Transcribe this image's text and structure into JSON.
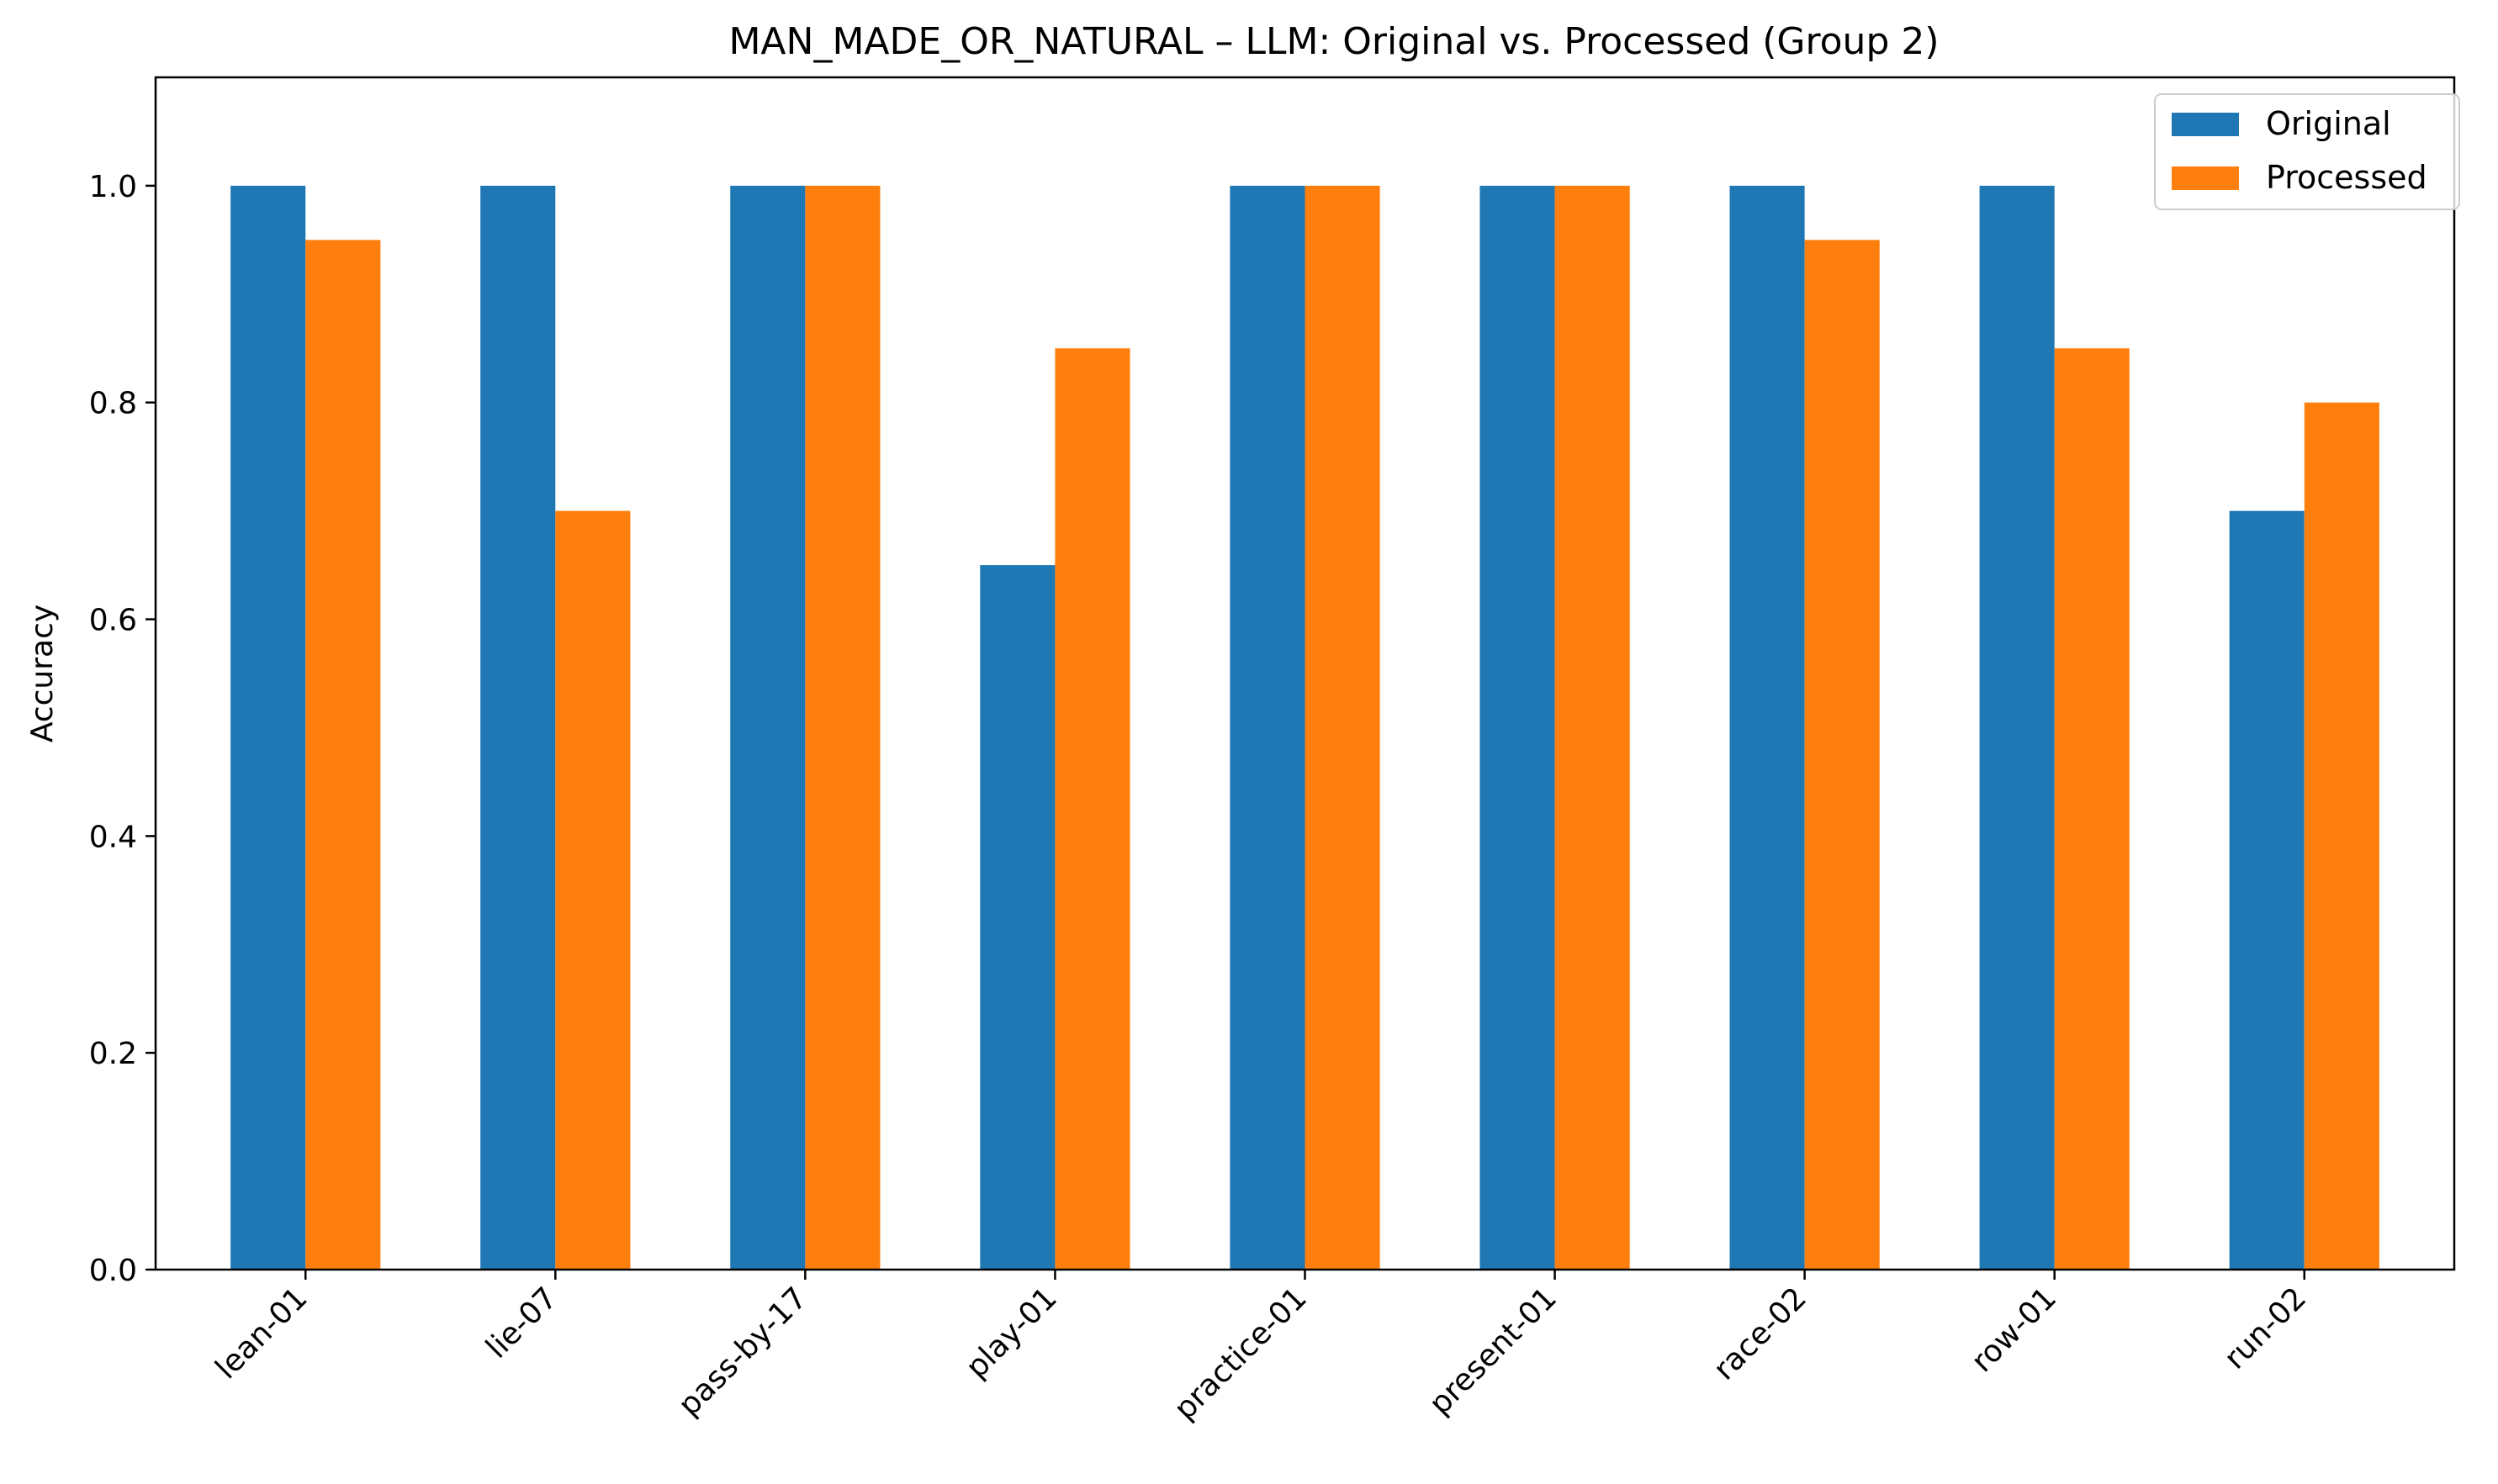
{
  "chart_data": {
    "type": "bar",
    "title": "MAN_MADE_OR_NATURAL – LLM: Original vs. Processed (Group 2)",
    "xlabel": "",
    "ylabel": "Accuracy",
    "categories": [
      "lean-01",
      "lie-07",
      "pass-by-17",
      "play-01",
      "practice-01",
      "present-01",
      "race-02",
      "row-01",
      "run-02"
    ],
    "series": [
      {
        "name": "Original",
        "color": "#1f77b4",
        "values": [
          1.0,
          1.0,
          1.0,
          0.65,
          1.0,
          1.0,
          1.0,
          1.0,
          0.7
        ]
      },
      {
        "name": "Processed",
        "color": "#ff7f0e",
        "values": [
          0.95,
          0.7,
          1.0,
          0.85,
          1.0,
          1.0,
          0.95,
          0.85,
          0.8
        ]
      }
    ],
    "ylim": [
      0,
      1.1
    ],
    "yticks": [
      "0.0",
      "0.2",
      "0.4",
      "0.6",
      "0.8",
      "1.0"
    ],
    "grid": false,
    "legend_position": "top-right"
  }
}
